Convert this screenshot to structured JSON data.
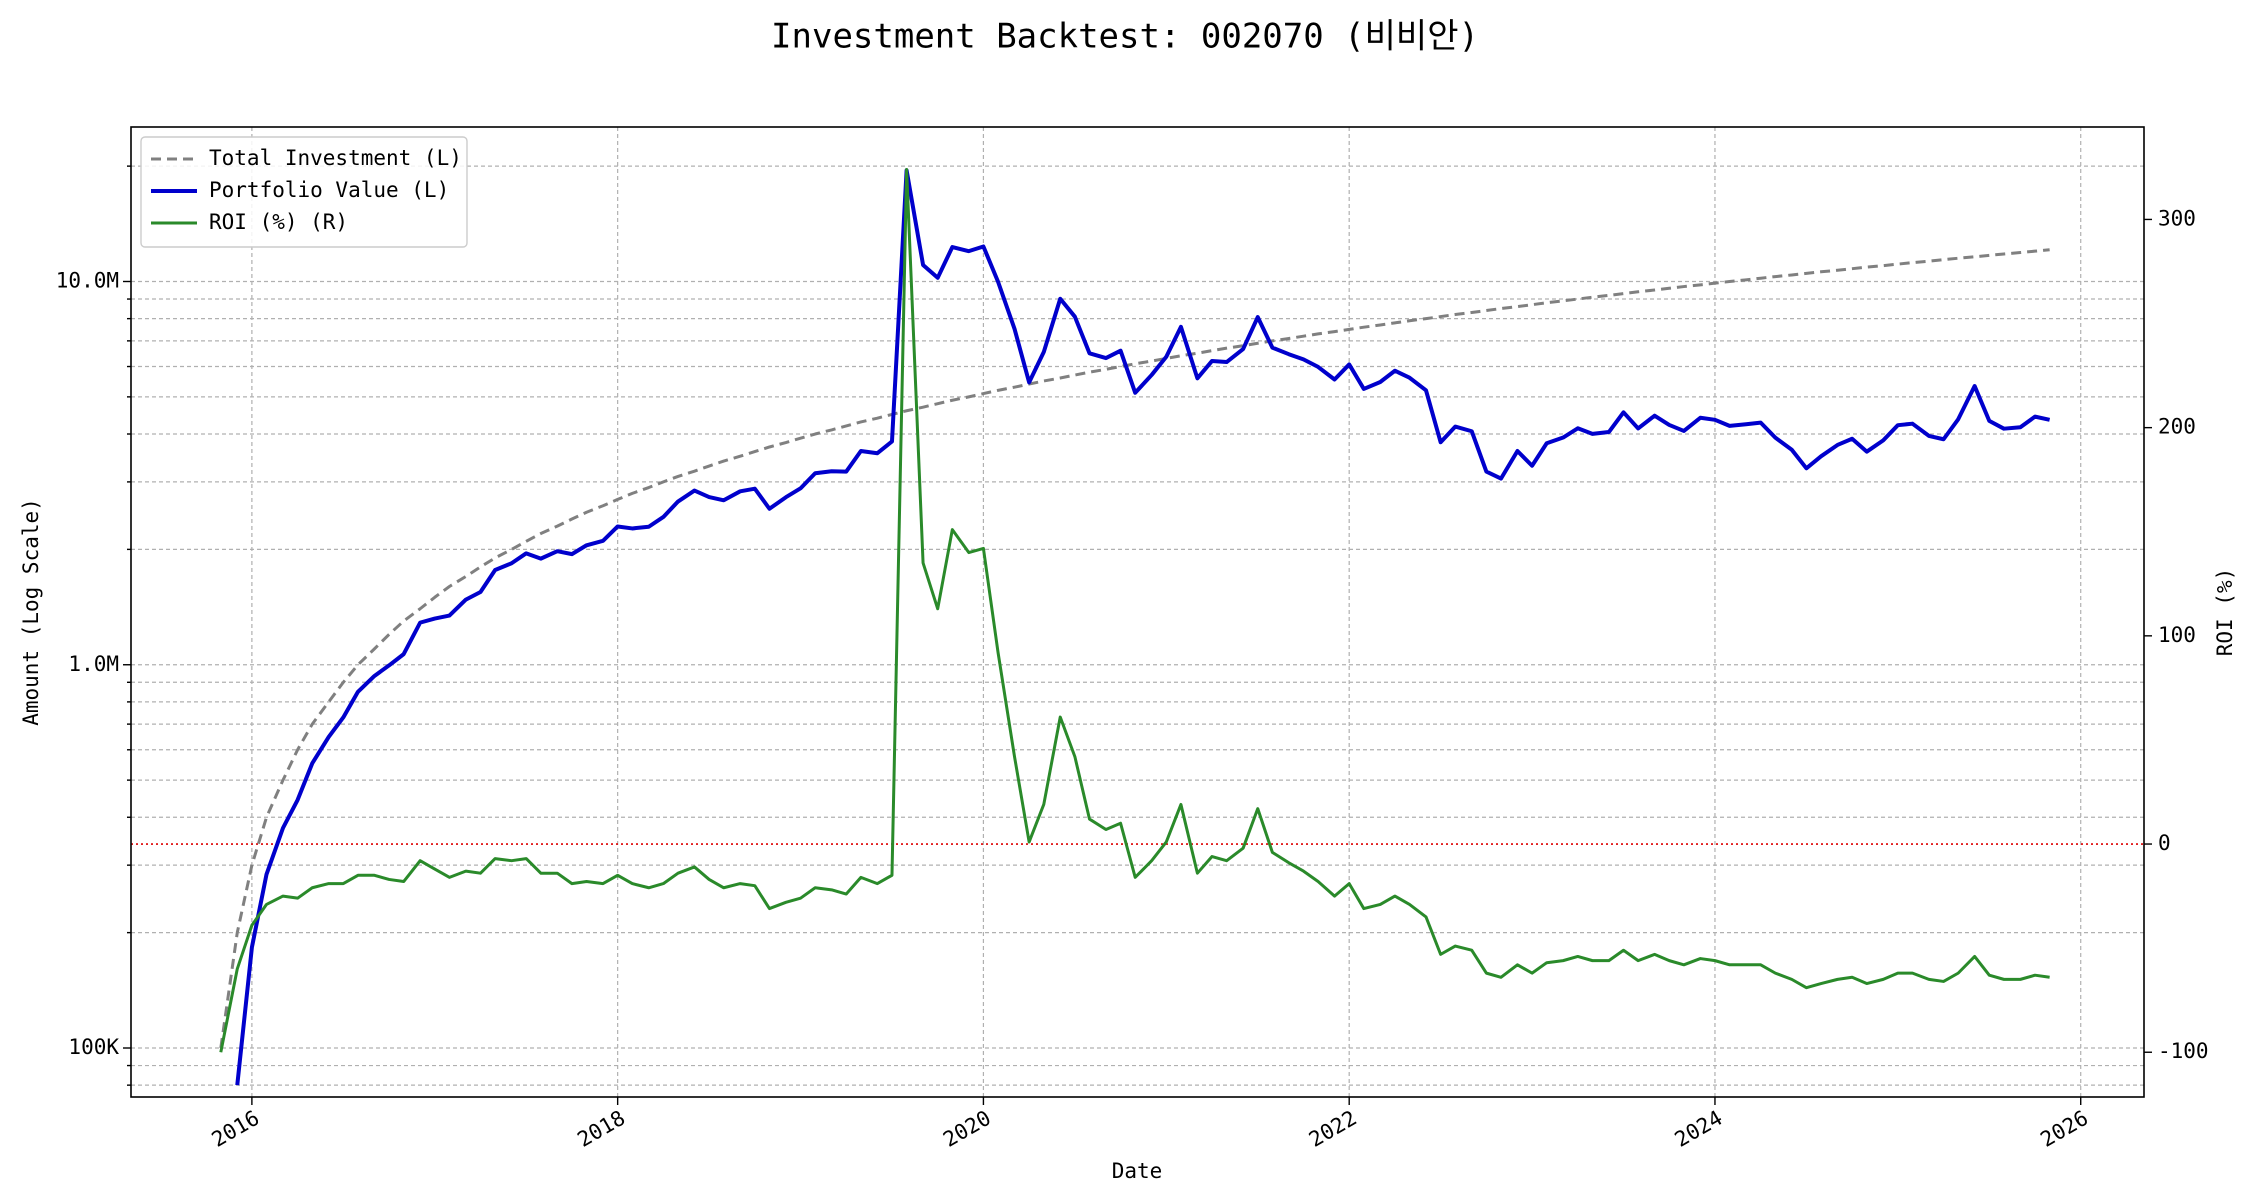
{
  "chart_data": {
    "type": "line",
    "title": "Investment Backtest: 002070 (비비안)",
    "x_label": "Date",
    "y_label": "Amount (Log Scale)",
    "y2_label": "ROI (%)",
    "y_color": "#0000cc",
    "y2_color": "#2a8a2a",
    "y_scale": "log",
    "grid": true,
    "legend_position": "upper-left",
    "xlim": [
      2015.339,
      2026.346
    ],
    "xticks": [
      2016,
      2018,
      2020,
      2022,
      2024,
      2026
    ],
    "ylim": [
      74500,
      25300000
    ],
    "yticks": [
      {
        "value": 100000,
        "label": "100K"
      },
      {
        "value": 1000000,
        "label": "1.0M"
      },
      {
        "value": 10000000,
        "label": "10.0M"
      }
    ],
    "yminorticks": [
      80000,
      90000,
      200000,
      300000,
      400000,
      500000,
      600000,
      700000,
      800000,
      900000,
      2000000,
      3000000,
      4000000,
      5000000,
      6000000,
      7000000,
      8000000,
      9000000,
      20000000
    ],
    "y2lim": [
      -121.5,
      344.4
    ],
    "y2ticks": [
      -100,
      0,
      100,
      200,
      300
    ],
    "reference_line": {
      "axis": "y2",
      "value": 0,
      "color": "#dd0000"
    },
    "x": [
      2015.83,
      2015.92,
      2016,
      2016.08,
      2016.17,
      2016.25,
      2016.33,
      2016.42,
      2016.5,
      2016.58,
      2016.67,
      2016.75,
      2016.83,
      2016.92,
      2017,
      2017.08,
      2017.17,
      2017.25,
      2017.33,
      2017.42,
      2017.5,
      2017.58,
      2017.67,
      2017.75,
      2017.83,
      2017.92,
      2018,
      2018.08,
      2018.17,
      2018.25,
      2018.33,
      2018.42,
      2018.5,
      2018.58,
      2018.67,
      2018.75,
      2018.83,
      2018.92,
      2019,
      2019.08,
      2019.17,
      2019.25,
      2019.33,
      2019.42,
      2019.5,
      2019.58,
      2019.67,
      2019.75,
      2019.83,
      2019.92,
      2020,
      2020.08,
      2020.17,
      2020.25,
      2020.33,
      2020.42,
      2020.5,
      2020.58,
      2020.67,
      2020.75,
      2020.83,
      2020.92,
      2021,
      2021.08,
      2021.17,
      2021.25,
      2021.33,
      2021.42,
      2021.5,
      2021.58,
      2021.67,
      2021.75,
      2021.83,
      2021.92,
      2022,
      2022.08,
      2022.17,
      2022.25,
      2022.33,
      2022.42,
      2022.5,
      2022.58,
      2022.67,
      2022.75,
      2022.83,
      2022.92,
      2023,
      2023.08,
      2023.17,
      2023.25,
      2023.33,
      2023.42,
      2023.5,
      2023.58,
      2023.67,
      2023.75,
      2023.83,
      2023.92,
      2024,
      2024.08,
      2024.17,
      2024.25,
      2024.33,
      2024.42,
      2024.5,
      2024.58,
      2024.67,
      2024.75,
      2024.83,
      2024.92,
      2025,
      2025.08,
      2025.17,
      2025.25,
      2025.33,
      2025.42,
      2025.5,
      2025.58,
      2025.67,
      2025.75,
      2025.83
    ],
    "series": [
      {
        "name": "Total Investment (L)",
        "color": "#808080",
        "line_style": "dashed",
        "line_width": 3,
        "axis": "y",
        "values": [
          100000,
          200000,
          300000,
          400000,
          500000,
          600000,
          700000,
          800000,
          900000,
          1000000,
          1100000,
          1200000,
          1300000,
          1400000,
          1500000,
          1600000,
          1700000,
          1800000,
          1900000,
          2000000,
          2100000,
          2200000,
          2300000,
          2400000,
          2500000,
          2600000,
          2700000,
          2800000,
          2900000,
          3000000,
          3100000,
          3200000,
          3300000,
          3400000,
          3500000,
          3600000,
          3700000,
          3800000,
          3900000,
          4000000,
          4100000,
          4200000,
          4300000,
          4400000,
          4500000,
          4600000,
          4700000,
          4800000,
          4900000,
          5000000,
          5100000,
          5200000,
          5300000,
          5400000,
          5500000,
          5600000,
          5700000,
          5800000,
          5900000,
          6000000,
          6100000,
          6200000,
          6300000,
          6400000,
          6500000,
          6600000,
          6700000,
          6800000,
          6900000,
          7000000,
          7100000,
          7200000,
          7300000,
          7400000,
          7500000,
          7600000,
          7700000,
          7800000,
          7900000,
          8000000,
          8100000,
          8200000,
          8300000,
          8400000,
          8500000,
          8600000,
          8700000,
          8800000,
          8900000,
          9000000,
          9100000,
          9200000,
          9300000,
          9400000,
          9500000,
          9600000,
          9700000,
          9800000,
          9900000,
          10000000,
          10100000,
          10200000,
          10300000,
          10400000,
          10500000,
          10600000,
          10700000,
          10800000,
          10900000,
          11000000,
          11100000,
          11200000,
          11300000,
          11400000,
          11500000,
          11600000,
          11700000,
          11800000,
          11900000,
          12000000,
          12100000
        ]
      },
      {
        "name": "Portfolio Value (L)",
        "color": "#0000cc",
        "line_style": "solid",
        "line_width": 4,
        "axis": "y",
        "values": [
          null,
          80000,
          183000,
          284000,
          375000,
          444000,
          553000,
          648000,
          729000,
          850000,
          935000,
          996000,
          1066000,
          1288000,
          1320000,
          1344000,
          1479000,
          1548000,
          1767000,
          1840000,
          1953000,
          1892000,
          1978000,
          1944000,
          2050000,
          2106000,
          2295000,
          2268000,
          2291000,
          2430000,
          2666000,
          2848000,
          2739000,
          2686000,
          2835000,
          2880000,
          2553000,
          2736000,
          2886000,
          3160000,
          3198000,
          3192000,
          3612000,
          3564000,
          3825000,
          19504000,
          11045000,
          10224000,
          12299000,
          12000000,
          12342000,
          9984000,
          7526000,
          5454000,
          6545000,
          9016000,
          8094000,
          6496000,
          6313000,
          6600000,
          5124000,
          5704000,
          6363000,
          7616000,
          5590000,
          6204000,
          6164000,
          6664000,
          8073000,
          6720000,
          6461000,
          6264000,
          5986000,
          5550000,
          6075000,
          5244000,
          5467000,
          5850000,
          5609000,
          5200000,
          3807000,
          4182000,
          4067000,
          3192000,
          3060000,
          3612000,
          3306000,
          3784000,
          3916000,
          4140000,
          4004000,
          4048000,
          4557000,
          4136000,
          4465000,
          4224000,
          4074000,
          4410000,
          4356000,
          4200000,
          4242000,
          4284000,
          3914000,
          3640000,
          3255000,
          3498000,
          3745000,
          3888000,
          3597000,
          3850000,
          4218000,
          4256000,
          3955000,
          3876000,
          4370000,
          5336000,
          4329000,
          4130000,
          4165000,
          4440000,
          4356000
        ]
      },
      {
        "name": "ROI (%) (R)",
        "color": "#2a8a2a",
        "line_style": "solid",
        "line_width": 3,
        "axis": "y2",
        "values": [
          -100,
          -60,
          -39,
          -29,
          -25,
          -26,
          -21,
          -19,
          -19,
          -15,
          -15,
          -17,
          -18,
          -8,
          -12,
          -16,
          -13,
          -14,
          -7,
          -8,
          -7,
          -14,
          -14,
          -19,
          -18,
          -19,
          -15,
          -19,
          -21,
          -19,
          -14,
          -11,
          -17,
          -21,
          -19,
          -20,
          -31,
          -28,
          -26,
          -21,
          -22,
          -24,
          -16,
          -19,
          -15,
          324,
          135,
          113,
          151,
          140,
          142,
          92,
          42,
          1,
          19,
          61,
          42,
          12,
          7,
          10,
          -16,
          -8,
          1,
          19,
          -14,
          -6,
          -8,
          -2,
          17,
          -4,
          -9,
          -13,
          -18,
          -25,
          -19,
          -31,
          -29,
          -25,
          -29,
          -35,
          -53,
          -49,
          -51,
          -62,
          -64,
          -58,
          -62,
          -57,
          -56,
          -54,
          -56,
          -56,
          -51,
          -56,
          -53,
          -56,
          -58,
          -55,
          -56,
          -58,
          -58,
          -58,
          -62,
          -65,
          -69,
          -67,
          -65,
          -64,
          -67,
          -65,
          -62,
          -62,
          -65,
          -66,
          -62,
          -54,
          -63,
          -65,
          -65,
          -63,
          -64
        ]
      }
    ]
  }
}
